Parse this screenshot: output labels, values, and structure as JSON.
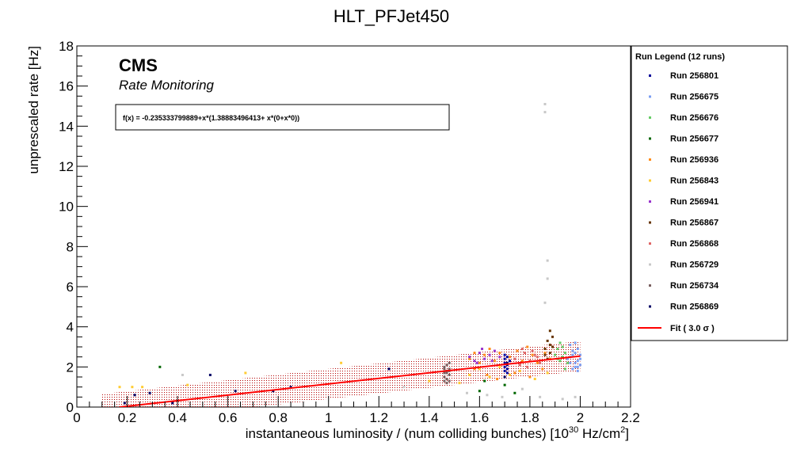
{
  "chart_data": {
    "type": "scatter",
    "title": "HLT_PFJet450",
    "xlabel": "instantaneous luminosity / (num colliding bunches) [10",
    "xlabel_sup": "30",
    "xlabel_unit": " Hz/cm",
    "xlabel_sup2": "2",
    "xlabel_end": "]",
    "ylabel": "unprescaled rate [Hz]",
    "xlim": [
      0,
      2.2
    ],
    "ylim": [
      0,
      18
    ],
    "x_ticks": [
      0,
      0.2,
      0.4,
      0.6,
      0.8,
      1,
      1.2,
      1.4,
      1.6,
      1.8,
      2,
      2.2
    ],
    "x_tick_labels": [
      "0",
      "0.2",
      "0.4",
      "0.6",
      "0.8",
      "1",
      "1.2",
      "1.4",
      "1.6",
      "1.8",
      "2",
      "2.2"
    ],
    "y_ticks": [
      0,
      2,
      4,
      6,
      8,
      10,
      12,
      14,
      16,
      18
    ],
    "y_tick_labels": [
      "0",
      "2",
      "4",
      "6",
      "8",
      "10",
      "12",
      "14",
      "16",
      "18"
    ],
    "cms_label": "CMS",
    "cms_sublabel": "Rate Monitoring",
    "fit_formula": "f(x) = -0.235333799889+x*(1.38883496413+ x*(0+x*0))",
    "fit": {
      "intercept": -0.235333799889,
      "slope": 1.38883496413,
      "sigma": 3.0,
      "band_halfwidth": 0.75,
      "x_range": [
        0.1,
        2.0
      ],
      "color": "#ff0000"
    },
    "legend_title": "Run Legend (12 runs)",
    "legend_placement": "right",
    "fit_legend_label": "Fit ( 3.0  σ )",
    "series": [
      {
        "name": "Run 256801",
        "color": "#000099",
        "points": [
          [
            1.7,
            2.0
          ],
          [
            1.7,
            2.2
          ],
          [
            1.71,
            1.9
          ],
          [
            1.7,
            2.4
          ],
          [
            1.71,
            1.7
          ],
          [
            1.7,
            2.6
          ],
          [
            1.71,
            2.1
          ],
          [
            1.72,
            2.3
          ],
          [
            1.7,
            1.8
          ],
          [
            1.71,
            2.5
          ]
        ]
      },
      {
        "name": "Run 256675",
        "color": "#7b9ef2",
        "points": [
          [
            1.96,
            2.2
          ],
          [
            1.97,
            2.6
          ],
          [
            1.98,
            2.0
          ],
          [
            1.99,
            2.9
          ],
          [
            2.0,
            2.4
          ],
          [
            1.96,
            3.1
          ],
          [
            1.97,
            1.9
          ],
          [
            1.98,
            2.7
          ],
          [
            1.99,
            2.3
          ],
          [
            2.0,
            2.1
          ],
          [
            1.96,
            2.5
          ],
          [
            1.97,
            2.8
          ],
          [
            1.98,
            2.2
          ],
          [
            1.99,
            1.8
          ],
          [
            2.0,
            2.6
          ],
          [
            1.95,
            2.4
          ],
          [
            1.98,
            3.2
          ],
          [
            1.99,
            2.0
          ]
        ]
      },
      {
        "name": "Run 256676",
        "color": "#66cc66",
        "points": [
          [
            1.9,
            2.6
          ],
          [
            1.91,
            2.9
          ],
          [
            1.92,
            2.3
          ],
          [
            1.93,
            3.0
          ],
          [
            1.94,
            2.7
          ],
          [
            1.95,
            2.2
          ],
          [
            1.92,
            3.2
          ],
          [
            1.93,
            2.5
          ],
          [
            1.94,
            1.9
          ],
          [
            1.91,
            2.4
          ]
        ]
      },
      {
        "name": "Run 256677",
        "color": "#006600",
        "points": [
          [
            0.33,
            2.0
          ],
          [
            1.7,
            1.1
          ],
          [
            1.6,
            0.8
          ],
          [
            1.74,
            0.7
          ],
          [
            1.62,
            1.3
          ]
        ]
      },
      {
        "name": "Run 256936",
        "color": "#ff8c1a",
        "points": [
          [
            1.56,
            2.4
          ],
          [
            1.58,
            2.7
          ],
          [
            1.6,
            2.2
          ],
          [
            1.62,
            2.6
          ],
          [
            1.64,
            2.9
          ],
          [
            1.66,
            2.3
          ],
          [
            1.68,
            2.7
          ],
          [
            1.72,
            2.5
          ],
          [
            1.75,
            2.8
          ],
          [
            1.77,
            2.3
          ],
          [
            1.79,
            3.0
          ],
          [
            1.81,
            2.6
          ],
          [
            1.83,
            2.2
          ],
          [
            1.86,
            2.7
          ],
          [
            1.88,
            2.4
          ],
          [
            1.63,
            1.6
          ],
          [
            1.67,
            1.4
          ],
          [
            1.74,
            1.7
          ],
          [
            1.8,
            1.5
          ],
          [
            1.85,
            1.9
          ],
          [
            1.58,
            1.9
          ]
        ]
      },
      {
        "name": "Run 256843",
        "color": "#ffcc33",
        "points": [
          [
            0.17,
            1.0
          ],
          [
            0.22,
            1.0
          ],
          [
            0.26,
            1.0
          ],
          [
            0.44,
            1.1
          ],
          [
            0.67,
            1.7
          ],
          [
            1.05,
            2.2
          ],
          [
            1.4,
            1.3
          ],
          [
            1.52,
            1.2
          ],
          [
            1.56,
            1.6
          ],
          [
            1.6,
            1.9
          ],
          [
            1.64,
            1.5
          ],
          [
            1.68,
            2.0
          ],
          [
            1.72,
            1.6
          ],
          [
            1.76,
            1.8
          ],
          [
            1.82,
            1.4
          ],
          [
            1.87,
            1.7
          ]
        ]
      },
      {
        "name": "Run 256941",
        "color": "#9933cc",
        "points": [
          [
            1.56,
            2.5
          ],
          [
            1.58,
            2.3
          ],
          [
            1.6,
            2.7
          ],
          [
            1.62,
            2.4
          ],
          [
            1.64,
            2.6
          ],
          [
            1.66,
            2.8
          ],
          [
            1.68,
            2.5
          ],
          [
            1.61,
            2.9
          ],
          [
            1.59,
            2.2
          ],
          [
            1.65,
            2.3
          ]
        ]
      },
      {
        "name": "Run 256867",
        "color": "#663300",
        "points": [
          [
            1.86,
            2.9
          ],
          [
            1.87,
            3.3
          ],
          [
            1.88,
            2.7
          ],
          [
            1.89,
            3.5
          ],
          [
            1.87,
            2.4
          ],
          [
            1.88,
            3.1
          ],
          [
            1.86,
            2.6
          ],
          [
            1.88,
            3.8
          ],
          [
            1.89,
            3.0
          ]
        ]
      },
      {
        "name": "Run 256868",
        "color": "#e06666",
        "points": [
          [
            1.74,
            2.4
          ],
          [
            1.76,
            2.1
          ],
          [
            1.78,
            2.7
          ],
          [
            1.8,
            2.3
          ],
          [
            1.82,
            2.6
          ],
          [
            1.84,
            2.2
          ],
          [
            1.77,
            2.9
          ],
          [
            1.79,
            2.0
          ],
          [
            1.81,
            2.8
          ],
          [
            1.83,
            2.5
          ]
        ]
      },
      {
        "name": "Run 256729",
        "color": "#c8c8c8",
        "points": [
          [
            1.86,
            15.1
          ],
          [
            1.86,
            14.7
          ],
          [
            1.87,
            7.3
          ],
          [
            1.87,
            6.4
          ],
          [
            1.86,
            5.2
          ],
          [
            1.55,
            0.7
          ],
          [
            1.63,
            0.6
          ],
          [
            1.69,
            0.5
          ],
          [
            1.77,
            0.9
          ],
          [
            1.84,
            0.5
          ],
          [
            1.93,
            0.4
          ],
          [
            1.98,
            0.5
          ],
          [
            0.42,
            1.6
          ],
          [
            1.3,
            1.0
          ]
        ]
      },
      {
        "name": "Run 256734",
        "color": "#7a6060",
        "points": [
          [
            1.46,
            1.5
          ],
          [
            1.47,
            1.8
          ],
          [
            1.48,
            1.3
          ],
          [
            1.47,
            2.1
          ],
          [
            1.46,
            1.7
          ],
          [
            1.48,
            1.9
          ],
          [
            1.47,
            1.2
          ],
          [
            1.46,
            2.0
          ],
          [
            1.48,
            1.6
          ],
          [
            1.47,
            1.4
          ],
          [
            1.46,
            1.9
          ],
          [
            1.48,
            2.2
          ],
          [
            1.47,
            1.7
          ],
          [
            1.46,
            1.3
          ],
          [
            1.48,
            1.8
          ]
        ]
      },
      {
        "name": "Run 256869",
        "color": "#000066",
        "points": [
          [
            0.19,
            0.2
          ],
          [
            0.23,
            0.6
          ],
          [
            0.29,
            0.7
          ],
          [
            0.38,
            0.2
          ],
          [
            0.53,
            1.6
          ],
          [
            0.63,
            0.8
          ],
          [
            0.78,
            0.8
          ],
          [
            0.85,
            1.0
          ],
          [
            1.24,
            1.9
          ],
          [
            1.7,
            1.5
          ],
          [
            1.71,
            2.2
          ]
        ]
      }
    ]
  }
}
